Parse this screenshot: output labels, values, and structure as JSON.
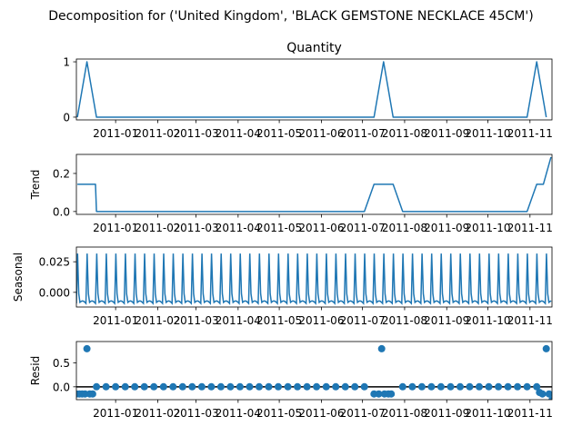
{
  "chart_data": {
    "type": "line",
    "title": "Decomposition for ('United Kingdom', 'BLACK GEMSTONE NECKLACE 45CM')",
    "colors": {
      "series": "#1f77b4",
      "axes": "#000000"
    },
    "x_tick_labels": [
      "2011-01",
      "2011-02",
      "2011-03",
      "2011-04",
      "2011-05",
      "2011-06",
      "2011-07",
      "2011-08",
      "2011-09",
      "2011-10",
      "2011-11"
    ],
    "x_tick_positions_week": [
      3,
      7.4,
      11.4,
      15.8,
      20.1,
      24.5,
      28.8,
      33.2,
      37.6,
      41.9,
      46.3
    ],
    "x_range_week": [
      -1.1,
      48.6
    ],
    "x_unit": "week index (weekly series, first week ≈ early Dec 2010)",
    "panels": [
      {
        "kind": "line",
        "title": "Quantity",
        "ylabel": "",
        "ylim": [
          -0.05,
          1.05
        ],
        "yticks": [
          0,
          1
        ],
        "ytick_labels": [
          "0",
          "1"
        ],
        "series": [
          {
            "x": [
              -1,
              0,
              1,
              2,
              3,
              4,
              5,
              6,
              7,
              8,
              9,
              10,
              11,
              12,
              13,
              14,
              15,
              16,
              17,
              18,
              19,
              20,
              21,
              22,
              23,
              24,
              25,
              26,
              27,
              28,
              29,
              30,
              31,
              32,
              33,
              34,
              35,
              36,
              37,
              38,
              39,
              40,
              41,
              42,
              43,
              44,
              45,
              46,
              47,
              48
            ],
            "values": [
              0,
              1,
              0,
              0,
              0,
              0,
              0,
              0,
              0,
              0,
              0,
              0,
              0,
              0,
              0,
              0,
              0,
              0,
              0,
              0,
              0,
              0,
              0,
              0,
              0,
              0,
              0,
              0,
              0,
              0,
              0,
              0,
              1,
              0,
              0,
              0,
              0,
              0,
              0,
              0,
              0,
              0,
              0,
              0,
              0,
              0,
              0,
              0,
              1,
              0
            ]
          }
        ]
      },
      {
        "kind": "line",
        "title": "",
        "ylabel": "Trend",
        "ylim": [
          -0.015,
          0.3
        ],
        "yticks": [
          0,
          0.2
        ],
        "ytick_labels": [
          "0.0",
          "0.2"
        ],
        "series": [
          {
            "x": [
              -1,
              0,
              0.9,
              1,
              2,
              29,
              30,
              30.9,
              31,
              32,
              33,
              46,
              47,
              47.7,
              48.5
            ],
            "values": [
              0.143,
              0.143,
              0.143,
              0,
              0,
              0,
              0.143,
              0.143,
              0.143,
              0.143,
              0,
              0,
              0.143,
              0.143,
              0.286
            ]
          }
        ]
      },
      {
        "kind": "seasonal",
        "title": "",
        "ylabel": "Seasonal",
        "ylim": [
          -0.012,
          0.037
        ],
        "yticks": [
          0,
          0.025
        ],
        "ytick_labels": [
          "0.000",
          "0.025"
        ],
        "season_period_week": 1,
        "season_peak": 0.033,
        "season_trough": -0.009,
        "season_x_start": -1.1,
        "season_x_end": 48.6
      },
      {
        "kind": "scatter",
        "title": "",
        "ylabel": "Resid",
        "ylim": [
          -0.27,
          0.95
        ],
        "yticks": [
          0,
          0.5
        ],
        "ytick_labels": [
          "0.0",
          "0.5"
        ],
        "baseline": 0,
        "series": [
          {
            "x": [
              -1.1,
              -0.8,
              -0.5,
              -0.2,
              0,
              0.3,
              0.6,
              1,
              2,
              3,
              4,
              5,
              6,
              7,
              8,
              9,
              10,
              11,
              12,
              13,
              14,
              15,
              16,
              17,
              18,
              19,
              20,
              21,
              22,
              23,
              24,
              25,
              26,
              27,
              28,
              29,
              30,
              30.5,
              30.8,
              31.1,
              31.5,
              31.8,
              33,
              34,
              35,
              36,
              37,
              38,
              39,
              40,
              41,
              42,
              43,
              44,
              45,
              46,
              47,
              47.3,
              47.6,
              48,
              48.3,
              48.6
            ],
            "values": [
              -0.15,
              -0.15,
              -0.15,
              -0.15,
              0.8,
              -0.15,
              -0.15,
              0,
              0,
              0,
              0,
              0,
              0,
              0,
              0,
              0,
              0,
              0,
              0,
              0,
              0,
              0,
              0,
              0,
              0,
              0,
              0,
              0,
              0,
              0,
              0,
              0,
              0,
              0,
              0,
              0,
              -0.15,
              -0.15,
              0.8,
              -0.15,
              -0.15,
              -0.15,
              0,
              0,
              0,
              0,
              0,
              0,
              0,
              0,
              0,
              0,
              0,
              0,
              0,
              0,
              0,
              -0.12,
              -0.15,
              0.8,
              -0.15,
              -0.28
            ]
          }
        ]
      }
    ]
  }
}
